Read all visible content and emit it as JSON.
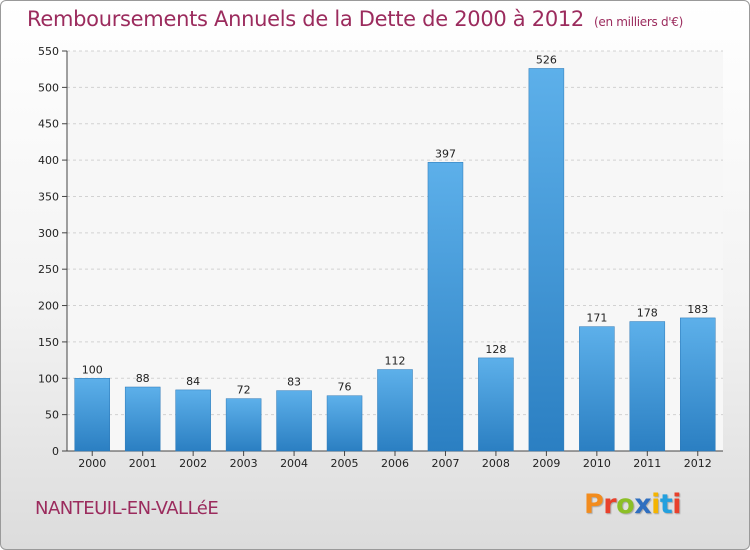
{
  "header": {
    "title": "Remboursements Annuels de la Dette de 2000 à 2012",
    "unit": "(en milliers d'€)"
  },
  "footer": {
    "town": "NANTEUIL-EN-VALLéE",
    "logo": "Proxiti"
  },
  "colors": {
    "title": "#9b2b5d",
    "bar_top": "#5db0ea",
    "bar_bottom": "#2b7fc2",
    "logo_letters": [
      "#f28c1e",
      "#e8412c",
      "#8cbf26",
      "#2f6fc0",
      "#f4b400",
      "#24a0de",
      "#e8412c"
    ]
  },
  "chart_data": {
    "type": "bar",
    "categories": [
      "2000",
      "2001",
      "2002",
      "2003",
      "2004",
      "2005",
      "2006",
      "2007",
      "2008",
      "2009",
      "2010",
      "2011",
      "2012"
    ],
    "values": [
      100,
      88,
      84,
      72,
      83,
      76,
      112,
      397,
      128,
      526,
      171,
      178,
      183
    ],
    "title": "Remboursements Annuels de la Dette de 2000 à 2012",
    "xlabel": "",
    "ylabel": "",
    "ylim": [
      0,
      550
    ],
    "yticks": [
      0,
      50,
      100,
      150,
      200,
      250,
      300,
      350,
      400,
      450,
      500,
      550
    ],
    "grid": true,
    "grid_axis": "y",
    "legend": "none"
  }
}
